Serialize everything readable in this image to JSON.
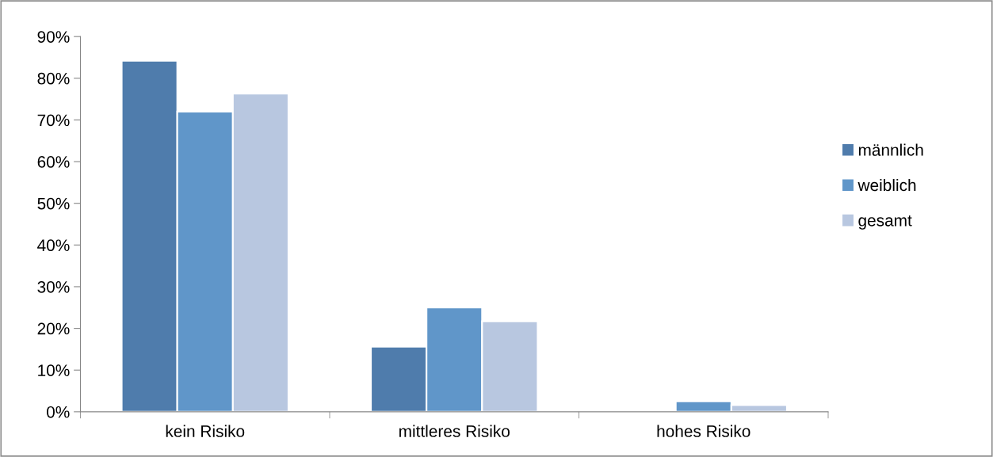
{
  "chart_data": {
    "type": "bar",
    "categories": [
      "kein Risiko",
      "mittleres Risiko",
      "hohes Risiko"
    ],
    "series": [
      {
        "name": "männlich",
        "color": "#4f7cac",
        "values": [
          84.2,
          15.6,
          null
        ]
      },
      {
        "name": "weiblich",
        "color": "#6096c9",
        "values": [
          72.0,
          25.0,
          2.5
        ]
      },
      {
        "name": "gesamt",
        "color": "#b8c7e0",
        "values": [
          76.3,
          21.7,
          1.6
        ]
      }
    ],
    "ylim": [
      0,
      90
    ],
    "yticks": [
      {
        "value": 0,
        "label": "0%"
      },
      {
        "value": 10,
        "label": "10%"
      },
      {
        "value": 20,
        "label": "20%"
      },
      {
        "value": 30,
        "label": "30%"
      },
      {
        "value": 40,
        "label": "40%"
      },
      {
        "value": 50,
        "label": "50%"
      },
      {
        "value": 60,
        "label": "60%"
      },
      {
        "value": 70,
        "label": "70%"
      },
      {
        "value": 80,
        "label": "80%"
      },
      {
        "value": 90,
        "label": "90%"
      }
    ],
    "grid": false,
    "legend": "right"
  }
}
